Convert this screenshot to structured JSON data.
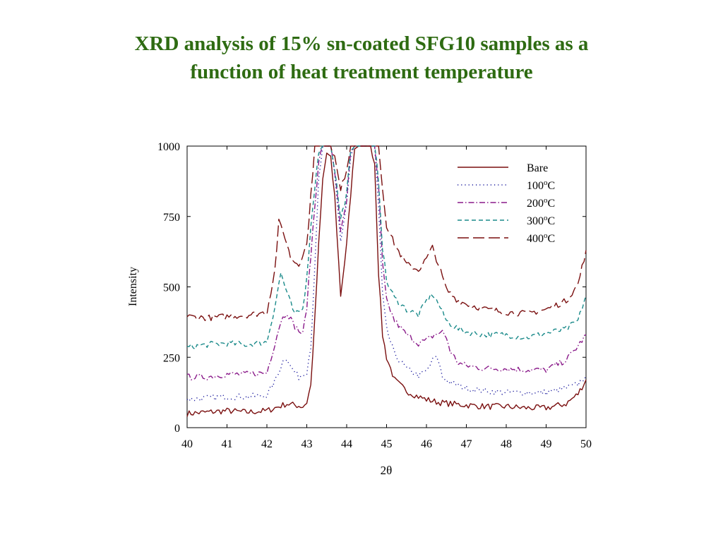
{
  "slide": {
    "title_line1": "XRD analysis of 15% sn-coated SFG10 samples as a",
    "title_line2": "function of heat treatment temperature"
  },
  "chart_data": {
    "type": "line",
    "xlabel": "2θ",
    "ylabel": "Intensity",
    "xlim": [
      40,
      50
    ],
    "ylim": [
      0,
      1000
    ],
    "xticks": [
      40,
      41,
      42,
      43,
      44,
      45,
      46,
      47,
      48,
      49,
      50
    ],
    "yticks": [
      0,
      250,
      500,
      750,
      1000
    ],
    "grid": false,
    "legend_position": "top-right",
    "series": [
      {
        "name": "Bare",
        "name_base": "Bare",
        "name_sup": "",
        "name_suffix": "",
        "color": "#7a0f0f",
        "dash": "solid",
        "points": [
          [
            40,
            50
          ],
          [
            40.5,
            55
          ],
          [
            41,
            60
          ],
          [
            41.5,
            55
          ],
          [
            42,
            60
          ],
          [
            42.3,
            75
          ],
          [
            42.5,
            85
          ],
          [
            42.7,
            80
          ],
          [
            42.9,
            75
          ],
          [
            43.0,
            90
          ],
          [
            43.1,
            150
          ],
          [
            43.2,
            380
          ],
          [
            43.3,
            650
          ],
          [
            43.4,
            880
          ],
          [
            43.5,
            975
          ],
          [
            43.6,
            955
          ],
          [
            43.7,
            820
          ],
          [
            43.85,
            470
          ],
          [
            44.0,
            650
          ],
          [
            44.1,
            830
          ],
          [
            44.2,
            990
          ],
          [
            44.3,
            1000
          ],
          [
            44.6,
            1000
          ],
          [
            44.7,
            940
          ],
          [
            44.8,
            550
          ],
          [
            44.9,
            330
          ],
          [
            45.0,
            250
          ],
          [
            45.2,
            170
          ],
          [
            45.5,
            130
          ],
          [
            45.8,
            110
          ],
          [
            46.0,
            100
          ],
          [
            46.3,
            90
          ],
          [
            46.6,
            85
          ],
          [
            47,
            80
          ],
          [
            47.5,
            75
          ],
          [
            48,
            75
          ],
          [
            48.5,
            70
          ],
          [
            49,
            70
          ],
          [
            49.5,
            85
          ],
          [
            49.8,
            120
          ],
          [
            50,
            170
          ]
        ]
      },
      {
        "name": "100oC",
        "name_base": "100",
        "name_sup": "o",
        "name_suffix": "C",
        "color": "#1c1c9e",
        "dash": "dotted",
        "points": [
          [
            40,
            100
          ],
          [
            40.5,
            105
          ],
          [
            41,
            110
          ],
          [
            41.5,
            110
          ],
          [
            42,
            115
          ],
          [
            42.2,
            165
          ],
          [
            42.4,
            235
          ],
          [
            42.5,
            250
          ],
          [
            42.6,
            215
          ],
          [
            42.8,
            180
          ],
          [
            43.0,
            200
          ],
          [
            43.1,
            290
          ],
          [
            43.2,
            560
          ],
          [
            43.3,
            880
          ],
          [
            43.4,
            1000
          ],
          [
            43.6,
            1000
          ],
          [
            43.7,
            890
          ],
          [
            43.85,
            660
          ],
          [
            44.0,
            800
          ],
          [
            44.1,
            960
          ],
          [
            44.2,
            1000
          ],
          [
            44.7,
            1000
          ],
          [
            44.8,
            780
          ],
          [
            44.9,
            470
          ],
          [
            45.0,
            350
          ],
          [
            45.2,
            260
          ],
          [
            45.5,
            210
          ],
          [
            45.8,
            185
          ],
          [
            46.0,
            200
          ],
          [
            46.2,
            250
          ],
          [
            46.3,
            240
          ],
          [
            46.4,
            180
          ],
          [
            46.6,
            160
          ],
          [
            47,
            140
          ],
          [
            47.5,
            130
          ],
          [
            48,
            125
          ],
          [
            48.5,
            125
          ],
          [
            49,
            125
          ],
          [
            49.5,
            140
          ],
          [
            49.8,
            155
          ],
          [
            50,
            185
          ]
        ]
      },
      {
        "name": "200oC",
        "name_base": "200",
        "name_sup": "o",
        "name_suffix": "C",
        "color": "#8a1a8a",
        "dash": "dashdot",
        "points": [
          [
            40,
            180
          ],
          [
            40.5,
            180
          ],
          [
            41,
            190
          ],
          [
            41.5,
            190
          ],
          [
            42,
            195
          ],
          [
            42.2,
            300
          ],
          [
            42.35,
            380
          ],
          [
            42.5,
            410
          ],
          [
            42.7,
            360
          ],
          [
            42.9,
            330
          ],
          [
            43.0,
            430
          ],
          [
            43.15,
            700
          ],
          [
            43.3,
            950
          ],
          [
            43.4,
            1000
          ],
          [
            43.6,
            1000
          ],
          [
            43.7,
            910
          ],
          [
            43.85,
            700
          ],
          [
            44.0,
            810
          ],
          [
            44.1,
            970
          ],
          [
            44.2,
            1000
          ],
          [
            44.7,
            1000
          ],
          [
            44.8,
            850
          ],
          [
            44.9,
            580
          ],
          [
            45.0,
            450
          ],
          [
            45.2,
            380
          ],
          [
            45.5,
            330
          ],
          [
            45.8,
            300
          ],
          [
            46.0,
            310
          ],
          [
            46.2,
            330
          ],
          [
            46.4,
            340
          ],
          [
            46.5,
            320
          ],
          [
            46.6,
            270
          ],
          [
            46.8,
            230
          ],
          [
            47,
            220
          ],
          [
            47.5,
            210
          ],
          [
            48,
            210
          ],
          [
            48.5,
            205
          ],
          [
            49,
            205
          ],
          [
            49.5,
            240
          ],
          [
            49.8,
            290
          ],
          [
            50,
            330
          ]
        ]
      },
      {
        "name": "300oC",
        "name_base": "300",
        "name_sup": "o",
        "name_suffix": "C",
        "color": "#1a8a8a",
        "dash": "dashed",
        "points": [
          [
            40,
            285
          ],
          [
            40.5,
            295
          ],
          [
            41,
            300
          ],
          [
            41.5,
            295
          ],
          [
            42,
            305
          ],
          [
            42.2,
            430
          ],
          [
            42.35,
            550
          ],
          [
            42.5,
            480
          ],
          [
            42.7,
            400
          ],
          [
            42.9,
            420
          ],
          [
            43.0,
            540
          ],
          [
            43.15,
            790
          ],
          [
            43.3,
            980
          ],
          [
            43.4,
            1000
          ],
          [
            43.6,
            1000
          ],
          [
            43.7,
            920
          ],
          [
            43.85,
            740
          ],
          [
            44.0,
            830
          ],
          [
            44.1,
            980
          ],
          [
            44.2,
            1000
          ],
          [
            44.7,
            1000
          ],
          [
            44.8,
            880
          ],
          [
            44.9,
            640
          ],
          [
            45.0,
            520
          ],
          [
            45.2,
            460
          ],
          [
            45.5,
            420
          ],
          [
            45.8,
            400
          ],
          [
            46.0,
            450
          ],
          [
            46.15,
            475
          ],
          [
            46.3,
            440
          ],
          [
            46.5,
            380
          ],
          [
            46.8,
            350
          ],
          [
            47,
            340
          ],
          [
            47.5,
            330
          ],
          [
            48,
            330
          ],
          [
            48.5,
            320
          ],
          [
            49,
            335
          ],
          [
            49.5,
            350
          ],
          [
            49.8,
            380
          ],
          [
            50,
            470
          ]
        ]
      },
      {
        "name": "400oC",
        "name_base": "400",
        "name_sup": "o",
        "name_suffix": "C",
        "color": "#7a0f0f",
        "dash": "longdash",
        "points": [
          [
            40,
            395
          ],
          [
            40.5,
            390
          ],
          [
            41,
            395
          ],
          [
            41.5,
            400
          ],
          [
            42,
            410
          ],
          [
            42.2,
            560
          ],
          [
            42.3,
            730
          ],
          [
            42.45,
            680
          ],
          [
            42.6,
            600
          ],
          [
            42.8,
            580
          ],
          [
            43.0,
            650
          ],
          [
            43.1,
            820
          ],
          [
            43.2,
            1000
          ],
          [
            43.6,
            1000
          ],
          [
            43.7,
            960
          ],
          [
            43.85,
            840
          ],
          [
            44.0,
            920
          ],
          [
            44.1,
            1000
          ],
          [
            44.8,
            1000
          ],
          [
            44.9,
            850
          ],
          [
            45.0,
            720
          ],
          [
            45.2,
            650
          ],
          [
            45.5,
            580
          ],
          [
            45.8,
            560
          ],
          [
            46.0,
            600
          ],
          [
            46.15,
            640
          ],
          [
            46.3,
            580
          ],
          [
            46.5,
            490
          ],
          [
            46.8,
            450
          ],
          [
            47,
            440
          ],
          [
            47.5,
            420
          ],
          [
            48,
            410
          ],
          [
            48.5,
            405
          ],
          [
            49,
            420
          ],
          [
            49.5,
            450
          ],
          [
            49.8,
            510
          ],
          [
            50,
            630
          ]
        ]
      }
    ]
  }
}
